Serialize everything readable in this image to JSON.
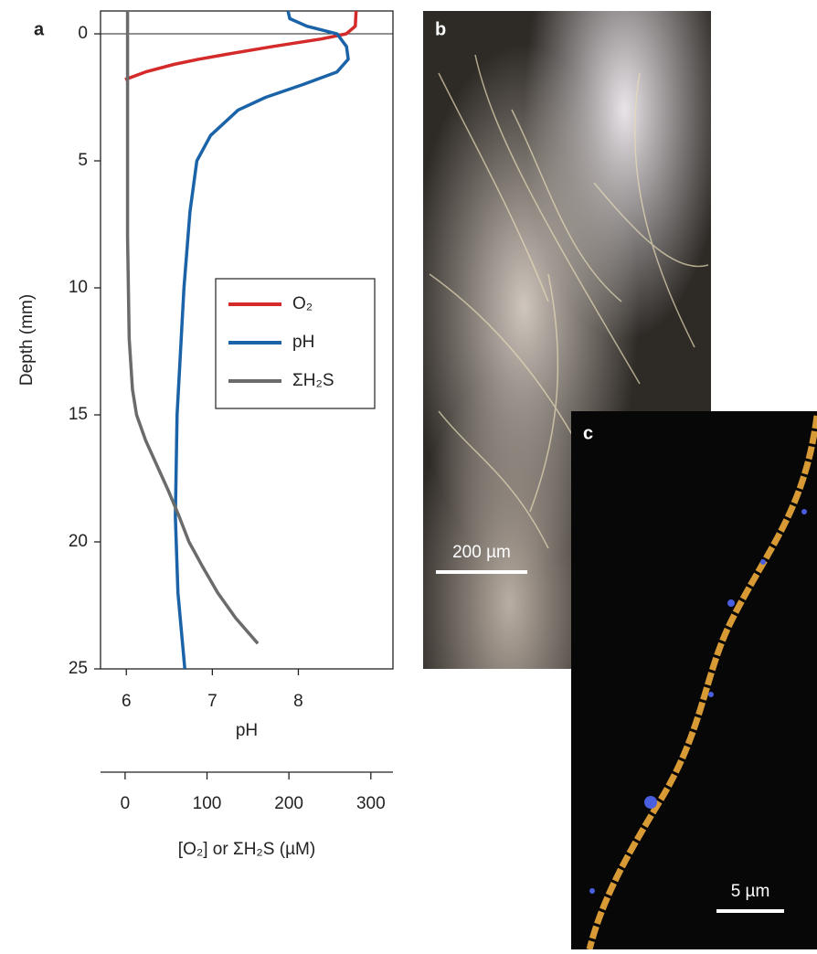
{
  "chart_data": {
    "type": "line",
    "panel_label": "a",
    "ylabel": "Depth (mm)",
    "xlabel": "pH",
    "x2label": "[O₂] or ΣH₂S (µM)",
    "ylim": [
      -0.9,
      25
    ],
    "yticks": [
      0,
      5,
      10,
      15,
      20,
      25
    ],
    "xlim": [
      5.7,
      9.1
    ],
    "xticks": [
      6,
      7,
      8
    ],
    "x2lim": [
      -30,
      327
    ],
    "x2ticks": [
      0,
      100,
      200,
      300
    ],
    "series": [
      {
        "name": "O₂",
        "color": "#d42a2a",
        "axis": "x2",
        "depth": [
          -0.9,
          -0.3,
          0,
          0.2,
          0.5,
          0.8,
          1.0,
          1.2,
          1.5,
          1.8
        ],
        "values": [
          282,
          281,
          270,
          240,
          180,
          125,
          90,
          60,
          25,
          0
        ]
      },
      {
        "name": "pH",
        "color": "#1a63a8",
        "axis": "x",
        "depth": [
          -0.9,
          -0.6,
          -0.3,
          0,
          0.5,
          1,
          1.5,
          2,
          2.5,
          3,
          4,
          5,
          7,
          10,
          15,
          19,
          22,
          25
        ],
        "values": [
          7.88,
          7.9,
          8.1,
          8.45,
          8.56,
          8.58,
          8.45,
          8.05,
          7.62,
          7.3,
          6.98,
          6.82,
          6.74,
          6.67,
          6.59,
          6.57,
          6.6,
          6.68
        ]
      },
      {
        "name": "ΣH₂S",
        "color": "#6b6b6b",
        "axis": "x2",
        "depth": [
          -0.9,
          0,
          2,
          5,
          8,
          10,
          12,
          14,
          15,
          16,
          17,
          18,
          19,
          20,
          21,
          22,
          23,
          24
        ],
        "values": [
          3,
          3,
          3,
          3,
          3,
          4,
          5,
          9,
          14,
          25,
          39,
          53,
          66,
          78,
          95,
          113,
          135,
          162
        ]
      }
    ]
  },
  "panels": [
    {
      "label": "b",
      "scale_bar": "200 µm"
    },
    {
      "label": "c",
      "scale_bar": "5 µm"
    }
  ]
}
